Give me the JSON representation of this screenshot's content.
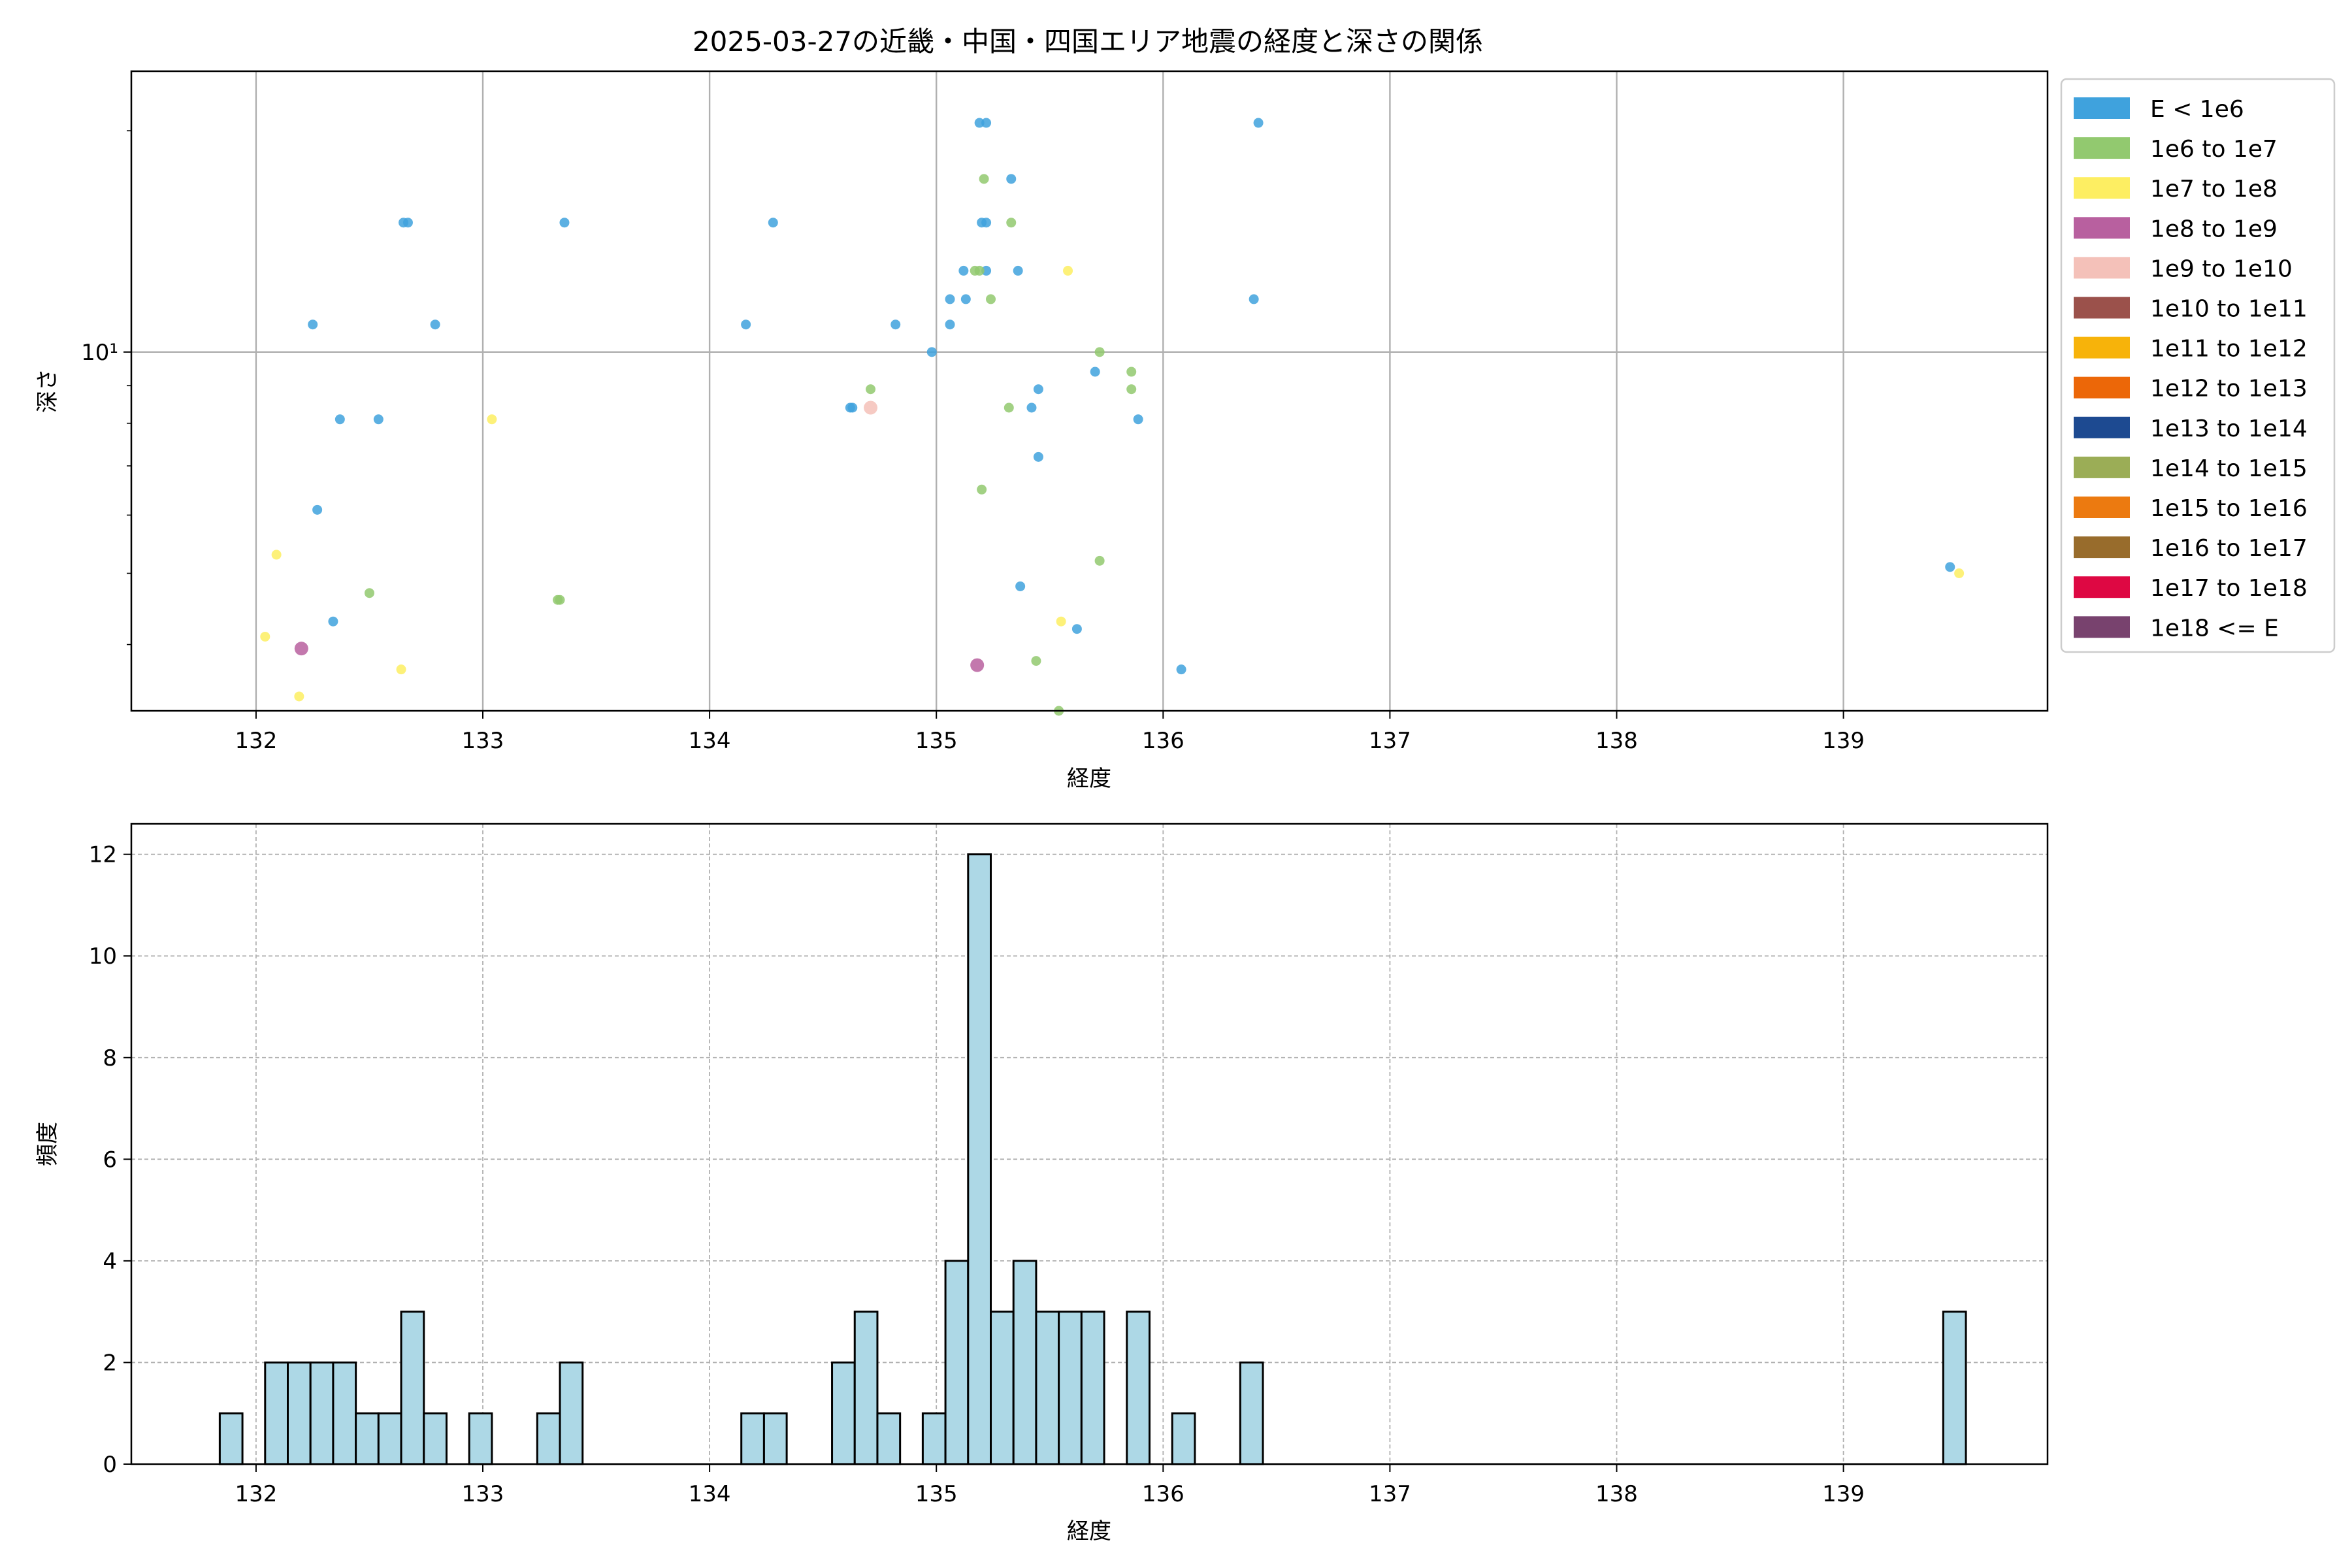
{
  "chart_data": [
    {
      "type": "scatter",
      "title": "2025-03-27の近畿・中国・四国エリア地震の経度と深さの関係",
      "xlabel": "経度",
      "ylabel": "深さ",
      "xlim": [
        131.45,
        139.9
      ],
      "ylim": [
        3.25,
        24.1
      ],
      "yscale": "log",
      "grid": true,
      "x_ticks": [
        "132",
        "133",
        "134",
        "135",
        "136",
        "137",
        "138",
        "139"
      ],
      "y_tick_label": "10¹",
      "legend_position": "outside-right",
      "legend": [
        {
          "label": "E < 1e6",
          "color": "#3fa2dd"
        },
        {
          "label": "1e6 to 1e7",
          "color": "#92c96f"
        },
        {
          "label": "1e7 to 1e8",
          "color": "#fdee62"
        },
        {
          "label": "1e8 to 1e9",
          "color": "#b8609f"
        },
        {
          "label": "1e9 to 1e10",
          "color": "#f4c1b9"
        },
        {
          "label": "1e10 to 1e11",
          "color": "#9b514b"
        },
        {
          "label": "1e11 to 1e12",
          "color": "#f7b30a"
        },
        {
          "label": "1e12 to 1e13",
          "color": "#ec6708"
        },
        {
          "label": "1e13 to 1e14",
          "color": "#1d4a91"
        },
        {
          "label": "1e14 to 1e15",
          "color": "#9bad56"
        },
        {
          "label": "1e15 to 1e16",
          "color": "#ec7a10"
        },
        {
          "label": "1e16 to 1e17",
          "color": "#986c2c"
        },
        {
          "label": "1e17 to 1e18",
          "color": "#de0843"
        },
        {
          "label": "1e18 <= E",
          "color": "#78426e"
        }
      ],
      "points": [
        {
          "x": 132.25,
          "y": 10.9,
          "c": 0
        },
        {
          "x": 132.67,
          "y": 15.0,
          "c": 0
        },
        {
          "x": 132.65,
          "y": 15.0,
          "c": 0
        },
        {
          "x": 133.36,
          "y": 15.0,
          "c": 0
        },
        {
          "x": 134.28,
          "y": 15.0,
          "c": 0
        },
        {
          "x": 132.79,
          "y": 10.9,
          "c": 0
        },
        {
          "x": 134.16,
          "y": 10.9,
          "c": 0
        },
        {
          "x": 134.82,
          "y": 10.9,
          "c": 0
        },
        {
          "x": 135.19,
          "y": 20.5,
          "c": 0
        },
        {
          "x": 135.22,
          "y": 20.5,
          "c": 0
        },
        {
          "x": 136.42,
          "y": 20.5,
          "c": 0
        },
        {
          "x": 135.33,
          "y": 17.2,
          "c": 0
        },
        {
          "x": 135.2,
          "y": 15.0,
          "c": 0
        },
        {
          "x": 135.22,
          "y": 15.0,
          "c": 0
        },
        {
          "x": 135.12,
          "y": 12.9,
          "c": 0
        },
        {
          "x": 135.22,
          "y": 12.9,
          "c": 0
        },
        {
          "x": 135.36,
          "y": 12.9,
          "c": 0
        },
        {
          "x": 135.06,
          "y": 11.8,
          "c": 0
        },
        {
          "x": 135.13,
          "y": 11.8,
          "c": 0
        },
        {
          "x": 136.4,
          "y": 11.8,
          "c": 0
        },
        {
          "x": 135.06,
          "y": 10.9,
          "c": 0
        },
        {
          "x": 134.98,
          "y": 10.0,
          "c": 0
        },
        {
          "x": 135.7,
          "y": 9.4,
          "c": 0
        },
        {
          "x": 135.45,
          "y": 8.9,
          "c": 0
        },
        {
          "x": 134.62,
          "y": 8.4,
          "c": 0
        },
        {
          "x": 134.63,
          "y": 8.4,
          "c": 0
        },
        {
          "x": 135.42,
          "y": 8.4,
          "c": 0
        },
        {
          "x": 132.37,
          "y": 8.1,
          "c": 0
        },
        {
          "x": 132.54,
          "y": 8.1,
          "c": 0
        },
        {
          "x": 135.89,
          "y": 8.1,
          "c": 0
        },
        {
          "x": 135.45,
          "y": 7.2,
          "c": 0
        },
        {
          "x": 132.27,
          "y": 6.1,
          "c": 0
        },
        {
          "x": 139.47,
          "y": 5.1,
          "c": 0
        },
        {
          "x": 135.37,
          "y": 4.8,
          "c": 0
        },
        {
          "x": 132.34,
          "y": 4.3,
          "c": 0
        },
        {
          "x": 135.62,
          "y": 4.2,
          "c": 0
        },
        {
          "x": 136.08,
          "y": 3.7,
          "c": 0
        },
        {
          "x": 135.21,
          "y": 17.2,
          "c": 1
        },
        {
          "x": 135.33,
          "y": 15.0,
          "c": 1
        },
        {
          "x": 135.17,
          "y": 12.9,
          "c": 1
        },
        {
          "x": 135.19,
          "y": 12.9,
          "c": 1
        },
        {
          "x": 135.24,
          "y": 11.8,
          "c": 1
        },
        {
          "x": 135.72,
          "y": 10.0,
          "c": 1
        },
        {
          "x": 135.86,
          "y": 9.4,
          "c": 1
        },
        {
          "x": 134.71,
          "y": 8.9,
          "c": 1
        },
        {
          "x": 135.86,
          "y": 8.9,
          "c": 1
        },
        {
          "x": 135.32,
          "y": 8.4,
          "c": 1
        },
        {
          "x": 135.2,
          "y": 6.5,
          "c": 1
        },
        {
          "x": 135.72,
          "y": 5.2,
          "c": 1
        },
        {
          "x": 132.5,
          "y": 4.7,
          "c": 1
        },
        {
          "x": 133.34,
          "y": 4.6,
          "c": 1
        },
        {
          "x": 133.33,
          "y": 4.6,
          "c": 1
        },
        {
          "x": 135.44,
          "y": 3.8,
          "c": 1
        },
        {
          "x": 135.54,
          "y": 3.25,
          "c": 1
        },
        {
          "x": 135.58,
          "y": 12.9,
          "c": 2
        },
        {
          "x": 133.04,
          "y": 8.1,
          "c": 2
        },
        {
          "x": 132.09,
          "y": 5.3,
          "c": 2
        },
        {
          "x": 139.51,
          "y": 5.0,
          "c": 2
        },
        {
          "x": 135.55,
          "y": 4.3,
          "c": 2
        },
        {
          "x": 132.04,
          "y": 4.1,
          "c": 2
        },
        {
          "x": 132.64,
          "y": 3.7,
          "c": 2
        },
        {
          "x": 132.19,
          "y": 3.4,
          "c": 2
        },
        {
          "x": 132.2,
          "y": 3.95,
          "c": 3
        },
        {
          "x": 135.18,
          "y": 3.75,
          "c": 3
        },
        {
          "x": 134.71,
          "y": 8.4,
          "c": 4
        }
      ]
    },
    {
      "type": "bar",
      "subtype": "histogram",
      "xlabel": "経度",
      "ylabel": "頻度",
      "xlim": [
        131.45,
        139.9
      ],
      "ylim": [
        0,
        12.6
      ],
      "grid": true,
      "x_ticks": [
        "132",
        "133",
        "134",
        "135",
        "136",
        "137",
        "138",
        "139"
      ],
      "y_ticks": [
        "0",
        "2",
        "4",
        "6",
        "8",
        "10",
        "12"
      ],
      "bar_color": "#add8e6",
      "edge_color": "#000000",
      "bins": [
        {
          "x0": 131.84,
          "x1": 131.94,
          "v": 1
        },
        {
          "x0": 132.04,
          "x1": 132.14,
          "v": 2
        },
        {
          "x0": 132.14,
          "x1": 132.24,
          "v": 2
        },
        {
          "x0": 132.24,
          "x1": 132.34,
          "v": 2
        },
        {
          "x0": 132.34,
          "x1": 132.44,
          "v": 2
        },
        {
          "x0": 132.44,
          "x1": 132.54,
          "v": 1
        },
        {
          "x0": 132.54,
          "x1": 132.64,
          "v": 1
        },
        {
          "x0": 132.64,
          "x1": 132.74,
          "v": 3
        },
        {
          "x0": 132.74,
          "x1": 132.84,
          "v": 1
        },
        {
          "x0": 132.94,
          "x1": 133.04,
          "v": 1
        },
        {
          "x0": 133.24,
          "x1": 133.34,
          "v": 1
        },
        {
          "x0": 133.34,
          "x1": 133.44,
          "v": 2
        },
        {
          "x0": 134.14,
          "x1": 134.24,
          "v": 1
        },
        {
          "x0": 134.24,
          "x1": 134.34,
          "v": 1
        },
        {
          "x0": 134.54,
          "x1": 134.64,
          "v": 2
        },
        {
          "x0": 134.64,
          "x1": 134.74,
          "v": 3
        },
        {
          "x0": 134.74,
          "x1": 134.84,
          "v": 1
        },
        {
          "x0": 134.94,
          "x1": 135.04,
          "v": 1
        },
        {
          "x0": 135.04,
          "x1": 135.14,
          "v": 4
        },
        {
          "x0": 135.14,
          "x1": 135.24,
          "v": 12
        },
        {
          "x0": 135.24,
          "x1": 135.34,
          "v": 3
        },
        {
          "x0": 135.34,
          "x1": 135.44,
          "v": 4
        },
        {
          "x0": 135.44,
          "x1": 135.54,
          "v": 3
        },
        {
          "x0": 135.54,
          "x1": 135.64,
          "v": 3
        },
        {
          "x0": 135.64,
          "x1": 135.74,
          "v": 3
        },
        {
          "x0": 135.84,
          "x1": 135.94,
          "v": 3
        },
        {
          "x0": 136.04,
          "x1": 136.14,
          "v": 1
        },
        {
          "x0": 136.34,
          "x1": 136.44,
          "v": 2
        },
        {
          "x0": 139.44,
          "x1": 139.54,
          "v": 3
        }
      ]
    }
  ]
}
